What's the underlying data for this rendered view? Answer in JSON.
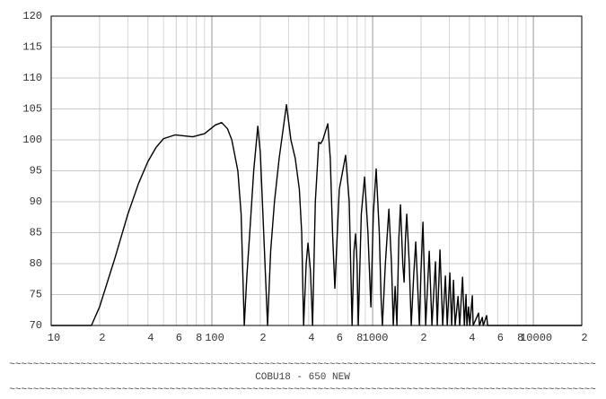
{
  "chart_data": {
    "type": "line",
    "caption": "COBU18 - 650 NEW",
    "separator": "~~~~~~~~~~~~~~~~~~~~~~~~~~~~~~~~~~~~~~~~~~~~~~~~~~~~~~~~~~~~~~~~~~~~~~~~~~~~~~~~~~~~~~~~~~~~~~~~~~~",
    "log_x": true,
    "grid": true,
    "xlim": [
      10,
      20000
    ],
    "ylim": [
      70,
      120
    ],
    "xticks": [
      10,
      {
        "value": 20,
        "label": "2"
      },
      {
        "value": 40,
        "label": "4"
      },
      {
        "value": 60,
        "label": "6"
      },
      {
        "value": 80,
        "label": "8"
      },
      100,
      {
        "value": 200,
        "label": "2"
      },
      {
        "value": 400,
        "label": "4"
      },
      {
        "value": 600,
        "label": "6"
      },
      {
        "value": 800,
        "label": "8"
      },
      1000,
      {
        "value": 2000,
        "label": "2"
      },
      {
        "value": 4000,
        "label": "4"
      },
      {
        "value": 6000,
        "label": "6"
      },
      {
        "value": 8000,
        "label": "8"
      },
      10000,
      {
        "value": 20000,
        "label": "2"
      }
    ],
    "xgrid": [
      30,
      50,
      70,
      90,
      300,
      500,
      700,
      900,
      3000,
      5000,
      7000,
      9000
    ],
    "yticks": [
      70,
      75,
      80,
      85,
      90,
      95,
      100,
      105,
      110,
      115,
      120
    ],
    "x": [
      10,
      17.8,
      20,
      25,
      30,
      35,
      40,
      45,
      50,
      59,
      76,
      90,
      105,
      115,
      125,
      133,
      145,
      152,
      159,
      165,
      172,
      182,
      193,
      200,
      210,
      222,
      232,
      245,
      262,
      291,
      310,
      330,
      350,
      362,
      372,
      386,
      396,
      410,
      423,
      440,
      462,
      475,
      490,
      526,
      545,
      563,
      582,
      620,
      679,
      715,
      745,
      765,
      783,
      800,
      814,
      850,
      891,
      935,
      975,
      1010,
      1052,
      1100,
      1130,
      1150,
      1200,
      1262,
      1310,
      1344,
      1380,
      1416,
      1455,
      1490,
      1540,
      1570,
      1600,
      1630,
      1690,
      1738,
      1800,
      1854,
      1953,
      2000,
      2056,
      2138,
      2250,
      2338,
      2460,
      2524,
      2624,
      2728,
      2836,
      2911,
      3023,
      3102,
      3184,
      3260,
      3399,
      3480,
      3625,
      3720,
      3811,
      3860,
      3950,
      4020,
      4170,
      4220,
      4560,
      4620,
      4810,
      4880,
      5120,
      5190,
      20000
    ],
    "series": [
      {
        "color": "#000000",
        "values": [
          70,
          70,
          73,
          81,
          88,
          93,
          96.5,
          98.8,
          100.2,
          100.8,
          100.5,
          101,
          102.4,
          102.8,
          101.8,
          100,
          95,
          88,
          70,
          78,
          85,
          95,
          102.2,
          98,
          85,
          70,
          82,
          90,
          97,
          105.7,
          100,
          97,
          92,
          85,
          70,
          80,
          83.3,
          79,
          70,
          90,
          99.6,
          99.4,
          100,
          102.6,
          97,
          85,
          76,
          92,
          97.5,
          90,
          70,
          82,
          84.8,
          80,
          70,
          88,
          94,
          85,
          73,
          88,
          95.3,
          85,
          74,
          70,
          80,
          88.8,
          80,
          70,
          76.3,
          70,
          84,
          89.5,
          80,
          77,
          84,
          88,
          80,
          70,
          78,
          83.5,
          70,
          79,
          86.7,
          70,
          82,
          70,
          80.3,
          70,
          82.2,
          70,
          78,
          70,
          78.5,
          70,
          77.3,
          70,
          74.7,
          70,
          77.8,
          70,
          75,
          70,
          73,
          70,
          74.8,
          70,
          72,
          70,
          71.3,
          70,
          71.6,
          70,
          70
        ]
      }
    ]
  }
}
